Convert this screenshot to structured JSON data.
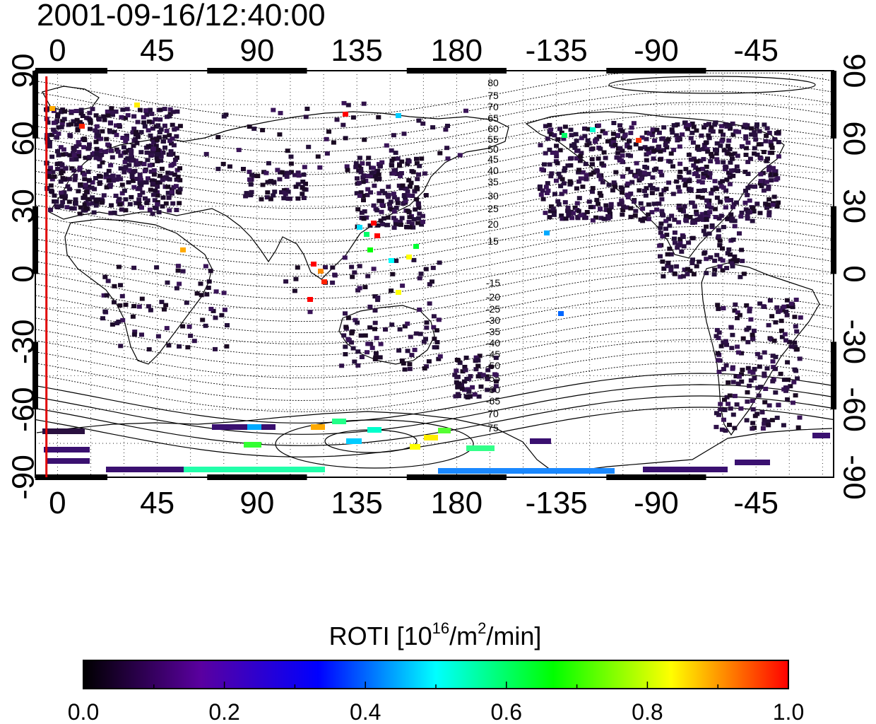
{
  "title": "2001-09-16/12:40:00",
  "map": {
    "top_axis_ticks": [
      "0",
      "45",
      "90",
      "135",
      "180",
      "-135",
      "-90",
      "-45"
    ],
    "bottom_axis_ticks": [
      "0",
      "45",
      "90",
      "135",
      "180",
      "-135",
      "-90",
      "-45"
    ],
    "left_axis_ticks": [
      "90",
      "60",
      "30",
      "0",
      "-30",
      "-60",
      "-90"
    ],
    "right_axis_ticks": [
      "90",
      "60",
      "30",
      "0",
      "-30",
      "-60",
      "-90"
    ],
    "longitude_range_deg": [
      -10,
      350
    ],
    "latitude_range_deg": [
      -90,
      90
    ],
    "terminator_longitude_deg": -5,
    "terminator_color": "#e00000",
    "contour_labels_north": [
      "80",
      "75",
      "70",
      "65",
      "60",
      "55",
      "50",
      "45",
      "40",
      "35",
      "30",
      "25",
      "20",
      "15"
    ],
    "contour_labels_south": [
      "-15",
      "-20",
      "-25",
      "-30",
      "-35",
      "-40",
      "-45",
      "-50",
      "-55",
      "-60",
      "-65",
      "70",
      "75"
    ],
    "grid": "dotted"
  },
  "colorbar": {
    "label_prefix": "ROTI  [10",
    "label_sup1": "16",
    "label_mid": "/m",
    "label_sup2": "2",
    "label_suffix": "/min]",
    "min": 0.0,
    "max": 1.0,
    "tick_labels": [
      "0.0",
      "0.2",
      "0.4",
      "0.6",
      "0.8",
      "1.0"
    ],
    "colors": [
      "#000000",
      "#5a00a0",
      "#0000ff",
      "#00ffff",
      "#00ff00",
      "#ffff00",
      "#ff0000"
    ]
  }
}
